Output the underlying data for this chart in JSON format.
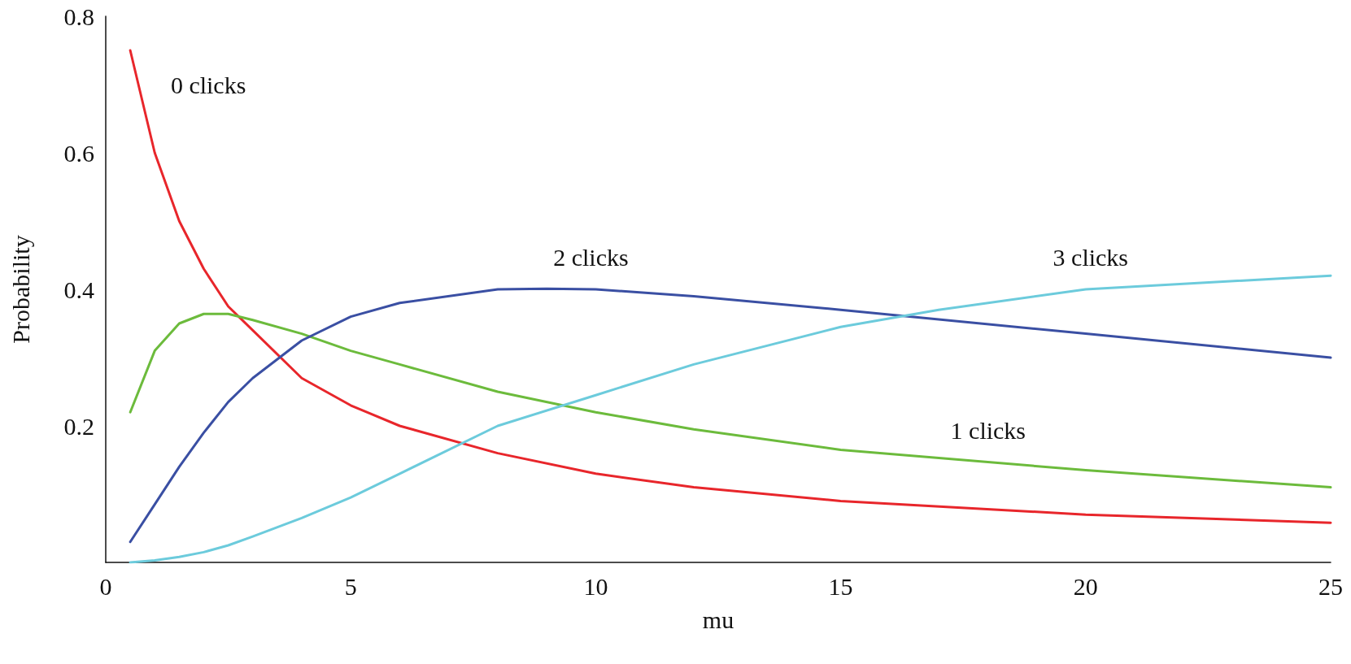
{
  "chart_data": {
    "type": "line",
    "xlabel": "mu",
    "ylabel": "Probability",
    "xlim": [
      0,
      25
    ],
    "xticks": [
      0,
      5,
      10,
      15,
      20,
      25
    ],
    "ylim": [
      0,
      0.8
    ],
    "yticks": [
      0.2,
      0.4,
      0.6,
      0.8
    ],
    "grid": false,
    "marker": "none",
    "line_style": "solid",
    "series": [
      {
        "name": "0 clicks",
        "color": "#e8262b",
        "x": [
          0.5,
          1,
          1.5,
          2,
          2.5,
          3,
          4,
          5,
          6,
          8,
          10,
          12,
          15,
          20,
          25
        ],
        "values": [
          0.75,
          0.6,
          0.5,
          0.43,
          0.375,
          0.34,
          0.27,
          0.23,
          0.2,
          0.16,
          0.13,
          0.11,
          0.09,
          0.07,
          0.058
        ]
      },
      {
        "name": "1 clicks",
        "color": "#6cbb3c",
        "x": [
          0.5,
          1,
          1.5,
          2,
          2.5,
          3,
          4,
          5,
          6,
          8,
          10,
          12,
          15,
          20,
          25
        ],
        "values": [
          0.22,
          0.31,
          0.35,
          0.364,
          0.364,
          0.355,
          0.335,
          0.31,
          0.29,
          0.25,
          0.22,
          0.195,
          0.165,
          0.135,
          0.11
        ]
      },
      {
        "name": "2 clicks",
        "color": "#3a4fa3",
        "x": [
          0.5,
          1,
          1.5,
          2,
          2.5,
          3,
          4,
          5,
          6,
          8,
          9,
          10,
          12,
          15,
          20,
          25
        ],
        "values": [
          0.03,
          0.085,
          0.14,
          0.19,
          0.235,
          0.27,
          0.325,
          0.36,
          0.38,
          0.4,
          0.401,
          0.4,
          0.39,
          0.37,
          0.335,
          0.3
        ]
      },
      {
        "name": "3 clicks",
        "color": "#6ccbdc",
        "x": [
          0.5,
          1,
          1.5,
          2,
          2.5,
          3,
          4,
          5,
          6,
          8,
          10,
          12,
          15,
          17,
          20,
          25
        ],
        "values": [
          0,
          0.003,
          0.008,
          0.015,
          0.025,
          0.038,
          0.065,
          0.095,
          0.13,
          0.2,
          0.245,
          0.29,
          0.345,
          0.37,
          0.4,
          0.42
        ]
      }
    ],
    "legend": false
  }
}
